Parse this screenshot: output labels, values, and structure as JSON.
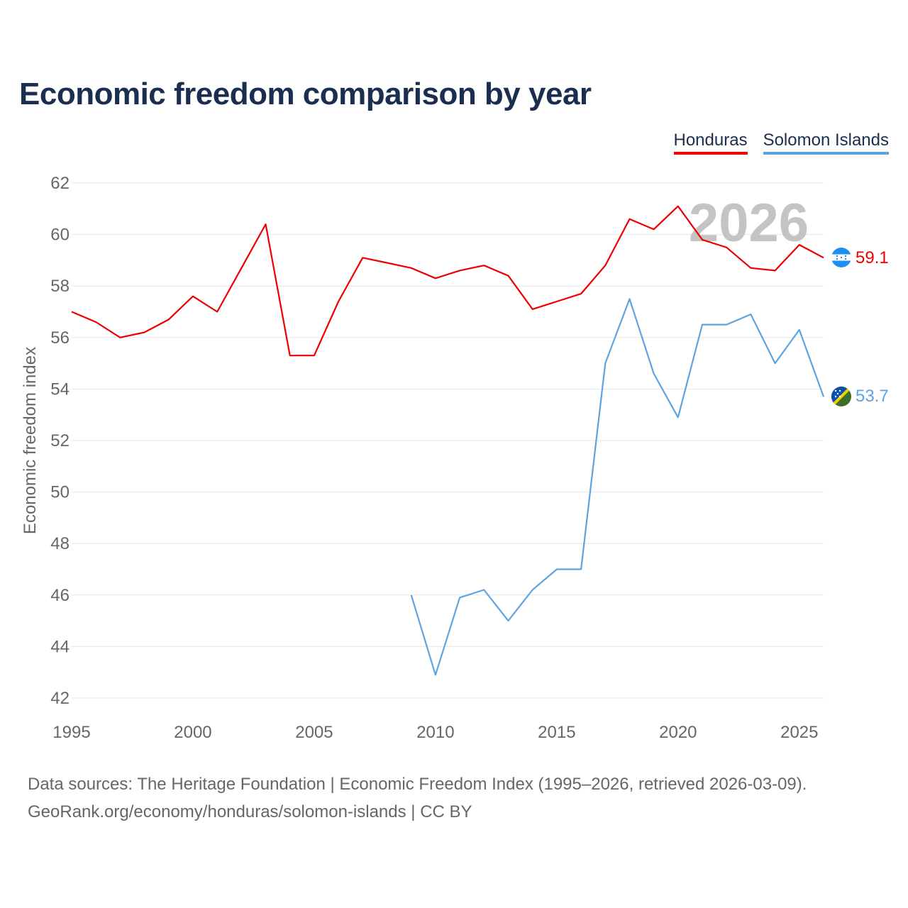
{
  "title": "Economic freedom comparison by year",
  "legend": {
    "honduras": "Honduras",
    "solomon": "Solomon Islands"
  },
  "watermark_year": "2026",
  "colors": {
    "honduras": "#ee0000",
    "solomon": "#5ea3e0",
    "grid": "#e6e6e6",
    "axis_text": "#666666",
    "watermark": "#c4c4c4"
  },
  "source": {
    "line1": "Data sources: The Heritage Foundation | Economic Freedom Index (1995–2026, retrieved 2026-03-09).",
    "line2": "GeoRank.org/economy/honduras/solomon-islands | CC BY"
  },
  "chart_data": {
    "type": "line",
    "title": "Economic freedom comparison by year",
    "xlabel": "",
    "ylabel": "Economic freedom index",
    "xlim": [
      1995,
      2026
    ],
    "ylim": [
      42,
      62
    ],
    "x_ticks": [
      1995,
      2000,
      2005,
      2010,
      2015,
      2020,
      2025
    ],
    "y_ticks": [
      42,
      44,
      46,
      48,
      50,
      52,
      54,
      56,
      58,
      60,
      62
    ],
    "grid": true,
    "legend_position": "top-right",
    "series": [
      {
        "name": "Honduras",
        "color": "#ee0000",
        "end_label": "59.1",
        "x": [
          1995,
          1996,
          1997,
          1998,
          1999,
          2000,
          2001,
          2002,
          2003,
          2004,
          2005,
          2006,
          2007,
          2008,
          2009,
          2010,
          2011,
          2012,
          2013,
          2014,
          2015,
          2016,
          2017,
          2018,
          2019,
          2020,
          2021,
          2022,
          2023,
          2024,
          2025,
          2026
        ],
        "y": [
          57.0,
          56.6,
          56.0,
          56.2,
          56.7,
          57.6,
          57.0,
          58.7,
          60.4,
          55.3,
          55.3,
          57.4,
          59.1,
          58.9,
          58.7,
          58.3,
          58.6,
          58.8,
          58.4,
          57.1,
          57.4,
          57.7,
          58.8,
          60.6,
          60.2,
          61.1,
          59.8,
          59.5,
          58.7,
          58.6,
          59.6,
          59.1
        ]
      },
      {
        "name": "Solomon Islands",
        "color": "#5ea3e0",
        "end_label": "53.7",
        "x": [
          2009,
          2010,
          2011,
          2012,
          2013,
          2014,
          2015,
          2016,
          2017,
          2018,
          2019,
          2020,
          2021,
          2022,
          2023,
          2024,
          2025,
          2026
        ],
        "y": [
          46.0,
          42.9,
          45.9,
          46.2,
          45.0,
          46.2,
          47.0,
          47.0,
          55.0,
          57.5,
          54.6,
          52.9,
          56.5,
          56.5,
          56.9,
          55.0,
          56.3,
          53.7
        ]
      }
    ]
  }
}
